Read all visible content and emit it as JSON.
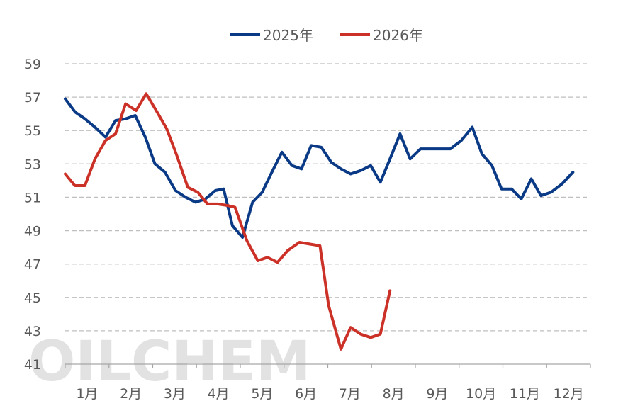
{
  "watermark_text": "OILCHEM",
  "chart_data": {
    "type": "line",
    "title": "",
    "xlabel": "",
    "ylabel": "",
    "ylim": [
      41,
      59
    ],
    "yticks": [
      41,
      43,
      45,
      47,
      49,
      51,
      53,
      55,
      57,
      59
    ],
    "xlim": [
      1,
      13
    ],
    "month_labels": [
      "1月",
      "2月",
      "3月",
      "4月",
      "5月",
      "6月",
      "7月",
      "8月",
      "9月",
      "10月",
      "11月",
      "12月"
    ],
    "grid": "horizontal-dashed",
    "legend_position": "top-center",
    "series": [
      {
        "name": "2025年",
        "color": "#0a3a86",
        "points": [
          [
            1.0,
            56.9
          ],
          [
            1.23,
            56.1
          ],
          [
            1.45,
            55.7
          ],
          [
            1.68,
            55.2
          ],
          [
            1.92,
            54.6
          ],
          [
            2.15,
            55.6
          ],
          [
            2.38,
            55.7
          ],
          [
            2.6,
            55.9
          ],
          [
            2.83,
            54.6
          ],
          [
            3.05,
            53.0
          ],
          [
            3.28,
            52.5
          ],
          [
            3.52,
            51.4
          ],
          [
            3.75,
            51.0
          ],
          [
            3.98,
            50.7
          ],
          [
            4.2,
            50.9
          ],
          [
            4.43,
            51.4
          ],
          [
            4.62,
            51.5
          ],
          [
            4.82,
            49.3
          ],
          [
            5.05,
            48.6
          ],
          [
            5.28,
            50.7
          ],
          [
            5.5,
            51.3
          ],
          [
            5.72,
            52.5
          ],
          [
            5.95,
            53.7
          ],
          [
            6.18,
            52.9
          ],
          [
            6.4,
            52.7
          ],
          [
            6.62,
            54.1
          ],
          [
            6.85,
            54.0
          ],
          [
            7.08,
            53.1
          ],
          [
            7.3,
            52.7
          ],
          [
            7.52,
            52.4
          ],
          [
            7.75,
            52.6
          ],
          [
            7.98,
            52.9
          ],
          [
            8.2,
            51.9
          ],
          [
            8.42,
            53.3
          ],
          [
            8.65,
            54.8
          ],
          [
            8.88,
            53.3
          ],
          [
            9.12,
            53.9
          ],
          [
            9.35,
            53.9
          ],
          [
            9.58,
            53.9
          ],
          [
            9.8,
            53.9
          ],
          [
            10.05,
            54.4
          ],
          [
            10.3,
            55.2
          ],
          [
            10.52,
            53.6
          ],
          [
            10.75,
            52.9
          ],
          [
            10.97,
            51.5
          ],
          [
            11.2,
            51.5
          ],
          [
            11.42,
            50.9
          ],
          [
            11.65,
            52.1
          ],
          [
            11.87,
            51.1
          ],
          [
            12.1,
            51.3
          ],
          [
            12.35,
            51.8
          ],
          [
            12.6,
            52.5
          ]
        ]
      },
      {
        "name": "2026年",
        "color": "#cc3128",
        "points": [
          [
            1.0,
            52.4
          ],
          [
            1.22,
            51.7
          ],
          [
            1.45,
            51.7
          ],
          [
            1.68,
            53.3
          ],
          [
            1.92,
            54.4
          ],
          [
            2.15,
            54.8
          ],
          [
            2.38,
            56.6
          ],
          [
            2.62,
            56.2
          ],
          [
            2.85,
            57.2
          ],
          [
            3.08,
            56.2
          ],
          [
            3.32,
            55.1
          ],
          [
            3.55,
            53.5
          ],
          [
            3.8,
            51.6
          ],
          [
            4.03,
            51.3
          ],
          [
            4.25,
            50.6
          ],
          [
            4.48,
            50.6
          ],
          [
            4.72,
            50.5
          ],
          [
            4.88,
            50.4
          ],
          [
            5.15,
            48.4
          ],
          [
            5.4,
            47.2
          ],
          [
            5.62,
            47.4
          ],
          [
            5.85,
            47.1
          ],
          [
            6.08,
            47.8
          ],
          [
            6.35,
            48.3
          ],
          [
            6.58,
            48.2
          ],
          [
            6.82,
            48.1
          ],
          [
            7.02,
            44.5
          ],
          [
            7.3,
            41.9
          ],
          [
            7.52,
            43.2
          ],
          [
            7.75,
            42.8
          ],
          [
            7.98,
            42.6
          ],
          [
            8.2,
            42.8
          ],
          [
            8.42,
            45.4
          ]
        ]
      }
    ]
  }
}
